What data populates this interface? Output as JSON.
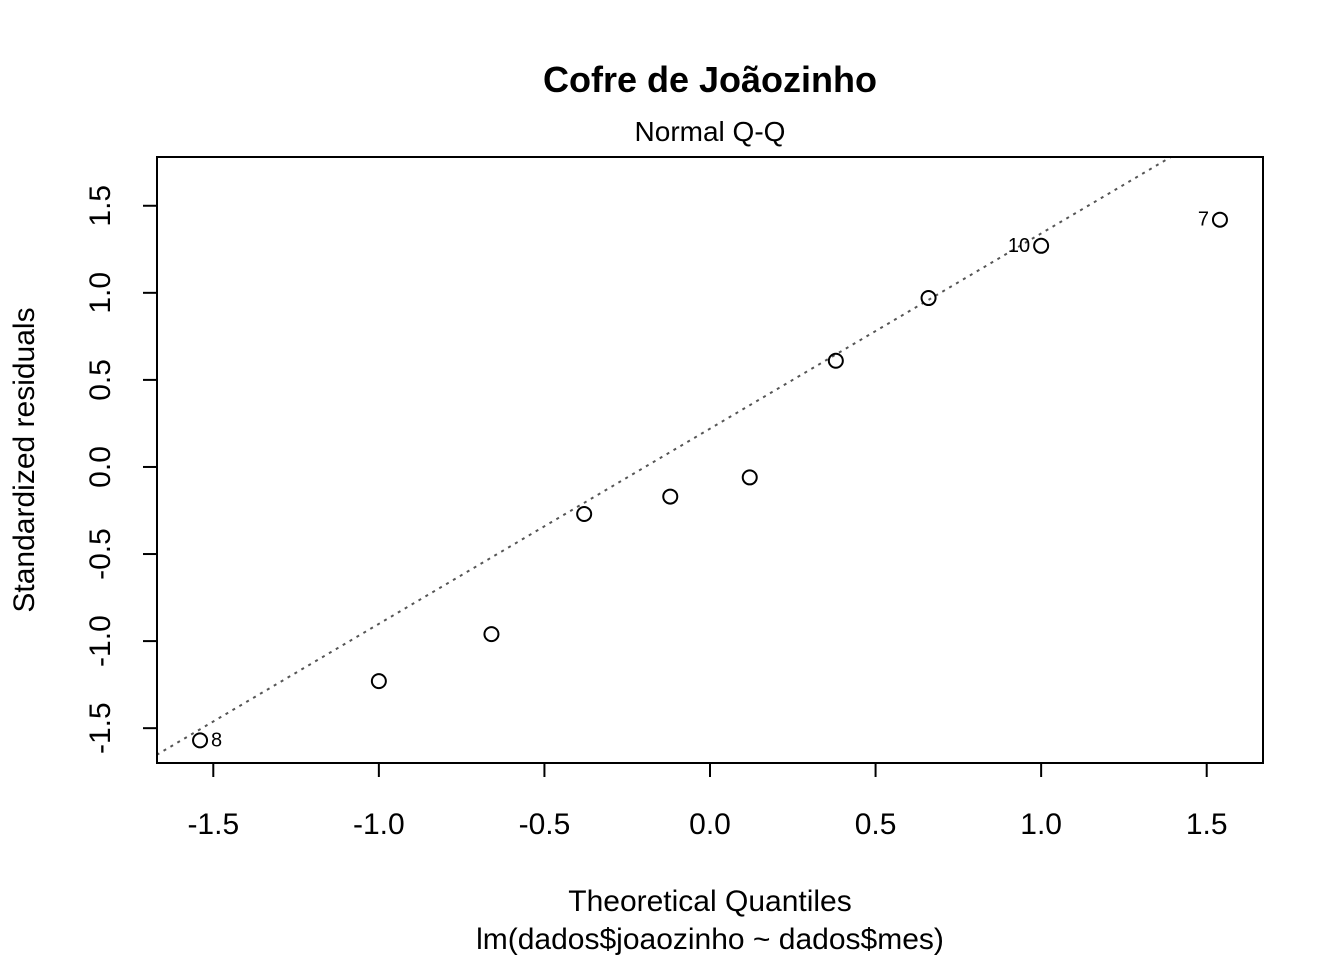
{
  "chart_data": {
    "type": "scatter",
    "title": "Cofre de Joãozinho",
    "subtitle": "Normal Q-Q",
    "xlabel": "Theoretical Quantiles",
    "xlabel_sub": "lm(dados$joaozinho ~ dados$mes)",
    "ylabel": "Standardized residuals",
    "xlim": [
      -1.67,
      1.67
    ],
    "ylim": [
      -1.7,
      1.78
    ],
    "x_ticks": [
      -1.5,
      -1.0,
      -0.5,
      0.0,
      0.5,
      1.0,
      1.5
    ],
    "x_tick_labels": [
      "-1.5",
      "-1.0",
      "-0.5",
      "0.0",
      "0.5",
      "1.0",
      "1.5"
    ],
    "y_ticks": [
      -1.5,
      -1.0,
      -0.5,
      0.0,
      0.5,
      1.0,
      1.5
    ],
    "y_tick_labels": [
      "-1.5",
      "-1.0",
      "-0.5",
      "0.0",
      "0.5",
      "1.0",
      "1.5"
    ],
    "grid": false,
    "points": [
      {
        "x": -1.54,
        "y": -1.57,
        "label": "8"
      },
      {
        "x": -1.0,
        "y": -1.23,
        "label": ""
      },
      {
        "x": -0.66,
        "y": -0.96,
        "label": ""
      },
      {
        "x": -0.38,
        "y": -0.27,
        "label": ""
      },
      {
        "x": -0.12,
        "y": -0.17,
        "label": ""
      },
      {
        "x": 0.12,
        "y": -0.06,
        "label": ""
      },
      {
        "x": 0.38,
        "y": 0.61,
        "label": ""
      },
      {
        "x": 0.66,
        "y": 0.97,
        "label": ""
      },
      {
        "x": 1.0,
        "y": 1.27,
        "label": "10"
      },
      {
        "x": 1.54,
        "y": 1.42,
        "label": "7"
      }
    ],
    "reference_line": {
      "slope": 1.121,
      "intercept": 0.22,
      "style": "dotted",
      "color": "#555555"
    }
  }
}
